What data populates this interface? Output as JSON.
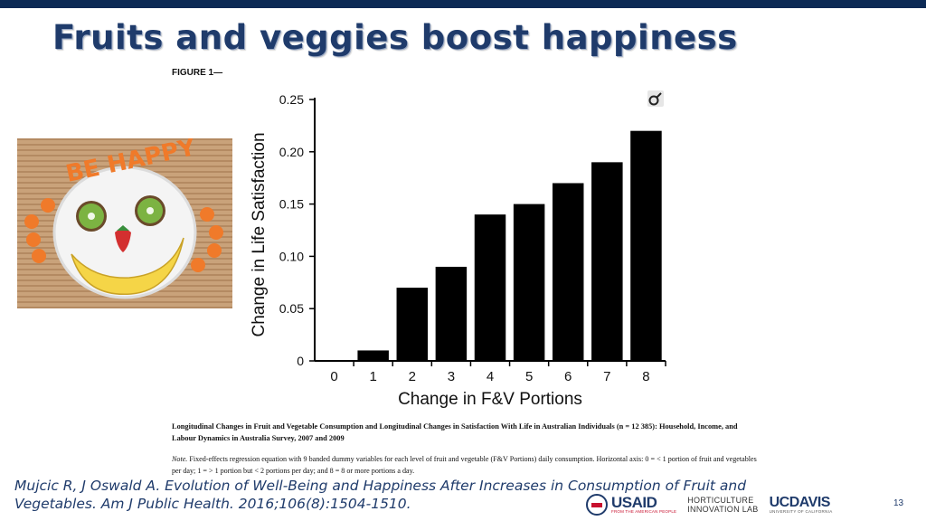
{
  "slide": {
    "title": "Fruits and veggies boost happiness",
    "figure_label": "FIGURE 1—",
    "page_number": "13"
  },
  "photo": {
    "plate_text": "BE HAPPY"
  },
  "chart_data": {
    "type": "bar",
    "categories": [
      "0",
      "1",
      "2",
      "3",
      "4",
      "5",
      "6",
      "7",
      "8"
    ],
    "values": [
      0,
      0.01,
      0.07,
      0.09,
      0.14,
      0.15,
      0.17,
      0.19,
      0.22
    ],
    "ylim": [
      0,
      0.25
    ],
    "yticks": [
      0,
      0.05,
      0.1,
      0.15,
      0.2,
      0.25
    ],
    "ytick_labels": [
      "0",
      "0.05",
      "0.10",
      "0.15",
      "0.20",
      "0.25"
    ],
    "xlabel": "Change in F&V Portions",
    "ylabel": "Change in Life Satisfaction",
    "bar_color": "#000000",
    "grid": false
  },
  "caption": {
    "title": "Longitudinal Changes in Fruit and Vegetable Consumption and Longitudinal Changes in Satisfaction With Life in Australian Individuals (n = 12 385): Household, Income, and Labour Dynamics in Australia Survey, 2007 and 2009",
    "note_label": "Note.",
    "note_text": " Fixed-effects regression equation with 9 banded dummy variables for each level of fruit and vegetable (F&V Portions) daily consumption. Horizontal axis: 0 = < 1 portion of fruit and vegetables per day; 1 = > 1 portion but < 2 portions per day; and 8 = 8 or more portions a day."
  },
  "citation": {
    "line1": "Mujcic R, J Oswald A. Evolution of Well-Being and Happiness After Increases in Consumption of Fruit and",
    "line2": "Vegetables. Am J Public Health. 2016;106(8):1504-1510."
  },
  "logos": {
    "usaid": "USAID",
    "usaid_tagline": "FROM THE AMERICAN PEOPLE",
    "hort_line1": "HORTICULTURE",
    "hort_line2": "INNOVATION LAB",
    "ucdavis": "UCDAVIS",
    "ucdavis_sub": "UNIVERSITY OF CALIFORNIA"
  },
  "colors": {
    "title": "#1f3b6b",
    "top_bar": "#0c2a55",
    "accent_red": "#c8102e"
  }
}
